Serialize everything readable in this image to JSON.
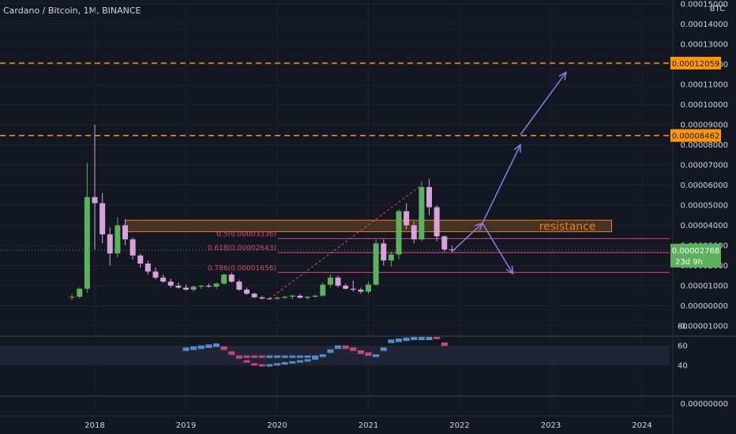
{
  "header": {
    "title": "Cardano / Bitcoin, 1M, BINANCE"
  },
  "colors": {
    "background": "#131722",
    "up": "#5ab25c",
    "down": "#d9a0d9",
    "fib_line": "#e04a6b",
    "orange_level": "#ff9800",
    "arrow": "#8c7ae6",
    "resistance_fill": "#6b4a1f",
    "price_tag": "#26a69a"
  },
  "chart_data": [
    {
      "type": "candlestick",
      "title": "Cardano / Bitcoin, 1M, BINANCE",
      "currency_label": "BTC",
      "x_ticks": [
        "2018",
        "2019",
        "2020",
        "2021",
        "2022",
        "2023",
        "2024"
      ],
      "y_ticks": [
        "0.00015000",
        "0.00014000",
        "0.00013000",
        "0.00012000",
        "0.00011000",
        "0.00010000",
        "0.00009000",
        "0.00008000",
        "0.00007000",
        "0.00006000",
        "0.00005000",
        "0.00004000",
        "0.00003000",
        "0.00002000",
        "0.00001000",
        "0.00000000",
        "-0.00001000"
      ],
      "ylim": [
        -1.3e-05,
        0.000155
      ],
      "candles": [
        {
          "date": "2017-10",
          "open": 4.2e-06,
          "high": 5.8e-06,
          "low": 3e-06,
          "close": 4.5e-06
        },
        {
          "date": "2017-11",
          "open": 4.5e-06,
          "high": 9e-06,
          "low": 3.8e-06,
          "close": 8.5e-06
        },
        {
          "date": "2017-12",
          "open": 8.5e-06,
          "high": 7.1e-05,
          "low": 6.5e-06,
          "close": 5.4e-05
        },
        {
          "date": "2018-01",
          "open": 5.4e-05,
          "high": 9e-05,
          "low": 2.8e-05,
          "close": 5.1e-05
        },
        {
          "date": "2018-02",
          "open": 5.1e-05,
          "high": 5.6e-05,
          "low": 3.1e-05,
          "close": 3.55e-05
        },
        {
          "date": "2018-03",
          "open": 3.55e-05,
          "high": 3.9e-05,
          "low": 2e-05,
          "close": 2.6e-05
        },
        {
          "date": "2018-04",
          "open": 2.6e-05,
          "high": 4.4e-05,
          "low": 2.4e-05,
          "close": 4e-05
        },
        {
          "date": "2018-05",
          "open": 4e-05,
          "high": 4.3e-05,
          "low": 3e-05,
          "close": 3.3e-05
        },
        {
          "date": "2018-06",
          "open": 3.3e-05,
          "high": 3.4e-05,
          "low": 2.3e-05,
          "close": 2.5e-05
        },
        {
          "date": "2018-07",
          "open": 2.5e-05,
          "high": 2.6e-05,
          "low": 1.9e-05,
          "close": 2.1e-05
        },
        {
          "date": "2018-08",
          "open": 2.1e-05,
          "high": 2.25e-05,
          "low": 1.55e-05,
          "close": 1.7e-05
        },
        {
          "date": "2018-09",
          "open": 1.7e-05,
          "high": 1.9e-05,
          "low": 1.3e-05,
          "close": 1.4e-05
        },
        {
          "date": "2018-10",
          "open": 1.4e-05,
          "high": 1.55e-05,
          "low": 1.15e-05,
          "close": 1.2e-05
        },
        {
          "date": "2018-11",
          "open": 1.2e-05,
          "high": 1.35e-05,
          "low": 9e-06,
          "close": 1e-05
        },
        {
          "date": "2018-12",
          "open": 1e-05,
          "high": 1.15e-05,
          "low": 8.5e-06,
          "close": 9e-06
        },
        {
          "date": "2019-01",
          "open": 9e-06,
          "high": 1.05e-05,
          "low": 7.5e-06,
          "close": 8e-06
        },
        {
          "date": "2019-02",
          "open": 8e-06,
          "high": 1e-05,
          "low": 7e-06,
          "close": 9.5e-06
        },
        {
          "date": "2019-03",
          "open": 9.5e-06,
          "high": 1.05e-05,
          "low": 8.5e-06,
          "close": 1e-05
        },
        {
          "date": "2019-04",
          "open": 1e-05,
          "high": 1.1e-05,
          "low": 9e-06,
          "close": 9.5e-06
        },
        {
          "date": "2019-05",
          "open": 9.5e-06,
          "high": 1.15e-05,
          "low": 8.5e-06,
          "close": 1.1e-05
        },
        {
          "date": "2019-06",
          "open": 1.1e-05,
          "high": 1.6e-05,
          "low": 1.05e-05,
          "close": 1.55e-05
        },
        {
          "date": "2019-07",
          "open": 1.55e-05,
          "high": 1.65e-05,
          "low": 1.15e-05,
          "close": 1.2e-05
        },
        {
          "date": "2019-08",
          "open": 1.2e-05,
          "high": 1.3e-05,
          "low": 7.5e-06,
          "close": 8e-06
        },
        {
          "date": "2019-09",
          "open": 8e-06,
          "high": 9e-06,
          "low": 5.5e-06,
          "close": 6e-06
        },
        {
          "date": "2019-10",
          "open": 6e-06,
          "high": 6.5e-06,
          "low": 3.8e-06,
          "close": 4.2e-06
        },
        {
          "date": "2019-11",
          "open": 4.2e-06,
          "high": 4.8e-06,
          "low": 3.2e-06,
          "close": 3.6e-06
        },
        {
          "date": "2019-12",
          "open": 3.6e-06,
          "high": 4.2e-06,
          "low": 3.1e-06,
          "close": 3.5e-06
        },
        {
          "date": "2020-01",
          "open": 3.5e-06,
          "high": 4.5e-06,
          "low": 3e-06,
          "close": 4e-06
        },
        {
          "date": "2020-02",
          "open": 4e-06,
          "high": 5e-06,
          "low": 3.4e-06,
          "close": 4.5e-06
        },
        {
          "date": "2020-03",
          "open": 4.5e-06,
          "high": 5.5e-06,
          "low": 3.2e-06,
          "close": 5e-06
        },
        {
          "date": "2020-04",
          "open": 5e-06,
          "high": 5.8e-06,
          "low": 3.6e-06,
          "close": 4e-06
        },
        {
          "date": "2020-05",
          "open": 4e-06,
          "high": 4.8e-06,
          "low": 3.2e-06,
          "close": 4.5e-06
        },
        {
          "date": "2020-06",
          "open": 4.5e-06,
          "high": 5.5e-06,
          "low": 4e-06,
          "close": 5e-06
        },
        {
          "date": "2020-07",
          "open": 5e-06,
          "high": 1.15e-05,
          "low": 4.5e-06,
          "close": 1.05e-05
        },
        {
          "date": "2020-08",
          "open": 1.05e-05,
          "high": 1.55e-05,
          "low": 9e-06,
          "close": 1.4e-05
        },
        {
          "date": "2020-09",
          "open": 1.4e-05,
          "high": 1.5e-05,
          "low": 9e-06,
          "close": 1e-05
        },
        {
          "date": "2020-10",
          "open": 1e-05,
          "high": 1.1e-05,
          "low": 8e-06,
          "close": 8.5e-06
        },
        {
          "date": "2020-11",
          "open": 8.5e-06,
          "high": 1.25e-05,
          "low": 7e-06,
          "close": 8e-06
        },
        {
          "date": "2020-12",
          "open": 8e-06,
          "high": 9e-06,
          "low": 6e-06,
          "close": 7e-06
        },
        {
          "date": "2021-01",
          "open": 7e-06,
          "high": 1.2e-05,
          "low": 6e-06,
          "close": 1.05e-05
        },
        {
          "date": "2021-02",
          "open": 1.05e-05,
          "high": 3.3e-05,
          "low": 1e-05,
          "close": 3.1e-05
        },
        {
          "date": "2021-03",
          "open": 3.1e-05,
          "high": 3.3e-05,
          "low": 2e-05,
          "close": 2.25e-05
        },
        {
          "date": "2021-04",
          "open": 2.25e-05,
          "high": 2.7e-05,
          "low": 1.95e-05,
          "close": 2.55e-05
        },
        {
          "date": "2021-05",
          "open": 2.55e-05,
          "high": 4.8e-05,
          "low": 2.3e-05,
          "close": 4.7e-05
        },
        {
          "date": "2021-06",
          "open": 4.7e-05,
          "high": 5.1e-05,
          "low": 3.8e-05,
          "close": 4e-05
        },
        {
          "date": "2021-07",
          "open": 4e-05,
          "high": 4.2e-05,
          "low": 3.1e-05,
          "close": 3.3e-05
        },
        {
          "date": "2021-08",
          "open": 3.3e-05,
          "high": 6.2e-05,
          "low": 3.2e-05,
          "close": 5.9e-05
        },
        {
          "date": "2021-09",
          "open": 5.9e-05,
          "high": 6.3e-05,
          "low": 4.5e-05,
          "close": 4.9e-05
        },
        {
          "date": "2021-10",
          "open": 4.9e-05,
          "high": 5e-05,
          "low": 3.2e-05,
          "close": 3.45e-05
        },
        {
          "date": "2021-11",
          "open": 3.45e-05,
          "high": 3.5e-05,
          "low": 2.7e-05,
          "close": 2.8e-05
        },
        {
          "date": "2021-12",
          "open": 2.8e-05,
          "high": 3e-05,
          "low": 2.65e-05,
          "close": 2.77e-05
        }
      ],
      "horizontal_levels": [
        {
          "value": 0.00012059,
          "label": "0.00012059",
          "style": "dashed",
          "color": "#ff9800"
        },
        {
          "value": 8.462e-05,
          "label": "0.00008462",
          "style": "dashed",
          "color": "#ff9800"
        }
      ],
      "fib_levels": [
        {
          "label": "0.5(0.00003336)",
          "value": 3.336e-05
        },
        {
          "label": "0.618(0.00002643)",
          "value": 2.643e-05
        },
        {
          "label": "0.786(0.00001656)",
          "value": 1.656e-05
        }
      ],
      "resistance_zone": {
        "label": "resistance",
        "low": 3.68e-05,
        "high": 4.25e-05,
        "start": "2018-05",
        "end": "2023-09"
      },
      "current_price": {
        "value": 2.768e-05,
        "label": "0.00002768",
        "countdown": "23d 9h"
      },
      "fib_trendline": {
        "start_date": "2019-12",
        "start_value": 3.5e-06,
        "end_date": "2021-08",
        "end_value": 6e-05
      },
      "projection_arrows": [
        {
          "from_date": "2021-12",
          "from_value": 2.7e-05,
          "to_date": "2022-04",
          "to_value": 4.1e-05
        },
        {
          "from_date": "2022-04",
          "from_value": 4.1e-05,
          "to_date": "2022-08",
          "to_value": 1.6e-05
        },
        {
          "from_date": "2022-04",
          "from_value": 4.1e-05,
          "to_date": "2022-09",
          "to_value": 8e-05
        },
        {
          "from_date": "2022-09",
          "from_value": 8.5e-05,
          "to_date": "2023-03",
          "to_value": 0.000116
        }
      ]
    },
    {
      "type": "histogram",
      "y_ticks": [
        "80",
        "60",
        "40"
      ],
      "ylim": [
        30,
        88
      ],
      "band": [
        40,
        60
      ],
      "dates": [
        "2019-01",
        "2019-02",
        "2019-03",
        "2019-04",
        "2019-05",
        "2019-06",
        "2019-07",
        "2019-08",
        "2019-09",
        "2019-10",
        "2019-11",
        "2019-12",
        "2020-01",
        "2020-02",
        "2020-03",
        "2020-04",
        "2020-05",
        "2020-06",
        "2020-07",
        "2020-08",
        "2020-09",
        "2020-10",
        "2020-11",
        "2020-12",
        "2021-01",
        "2021-02",
        "2021-03",
        "2021-04",
        "2021-05",
        "2021-06",
        "2021-07",
        "2021-08",
        "2021-09",
        "2021-10",
        "2021-11"
      ],
      "values": [
        57,
        58,
        59,
        60,
        61,
        58,
        53,
        48,
        44,
        41,
        40,
        40,
        41,
        42,
        43,
        44,
        45,
        47,
        50,
        55,
        59,
        59,
        57,
        54,
        52,
        50,
        57,
        65,
        66,
        67,
        68,
        68,
        68,
        69,
        62
      ],
      "colors": [
        "#4f8ec9",
        "#4f8ec9",
        "#4f8ec9",
        "#4f8ec9",
        "#4f8ec9",
        "#c2477a",
        "#c2477a",
        "#c2477a",
        "#c2477a",
        "#c2477a",
        "#c2477a",
        "#4f8ec9",
        "#4f8ec9",
        "#4f8ec9",
        "#4f8ec9",
        "#4f8ec9",
        "#4f8ec9",
        "#4f8ec9",
        "#4f8ec9",
        "#4f8ec9",
        "#4f8ec9",
        "#c2477a",
        "#c2477a",
        "#c2477a",
        "#c2477a",
        "#4f8ec9",
        "#4f8ec9",
        "#4f8ec9",
        "#4f8ec9",
        "#4f8ec9",
        "#4f8ec9",
        "#4f8ec9",
        "#4f8ec9",
        "#c2477a",
        "#c2477a"
      ]
    }
  ]
}
